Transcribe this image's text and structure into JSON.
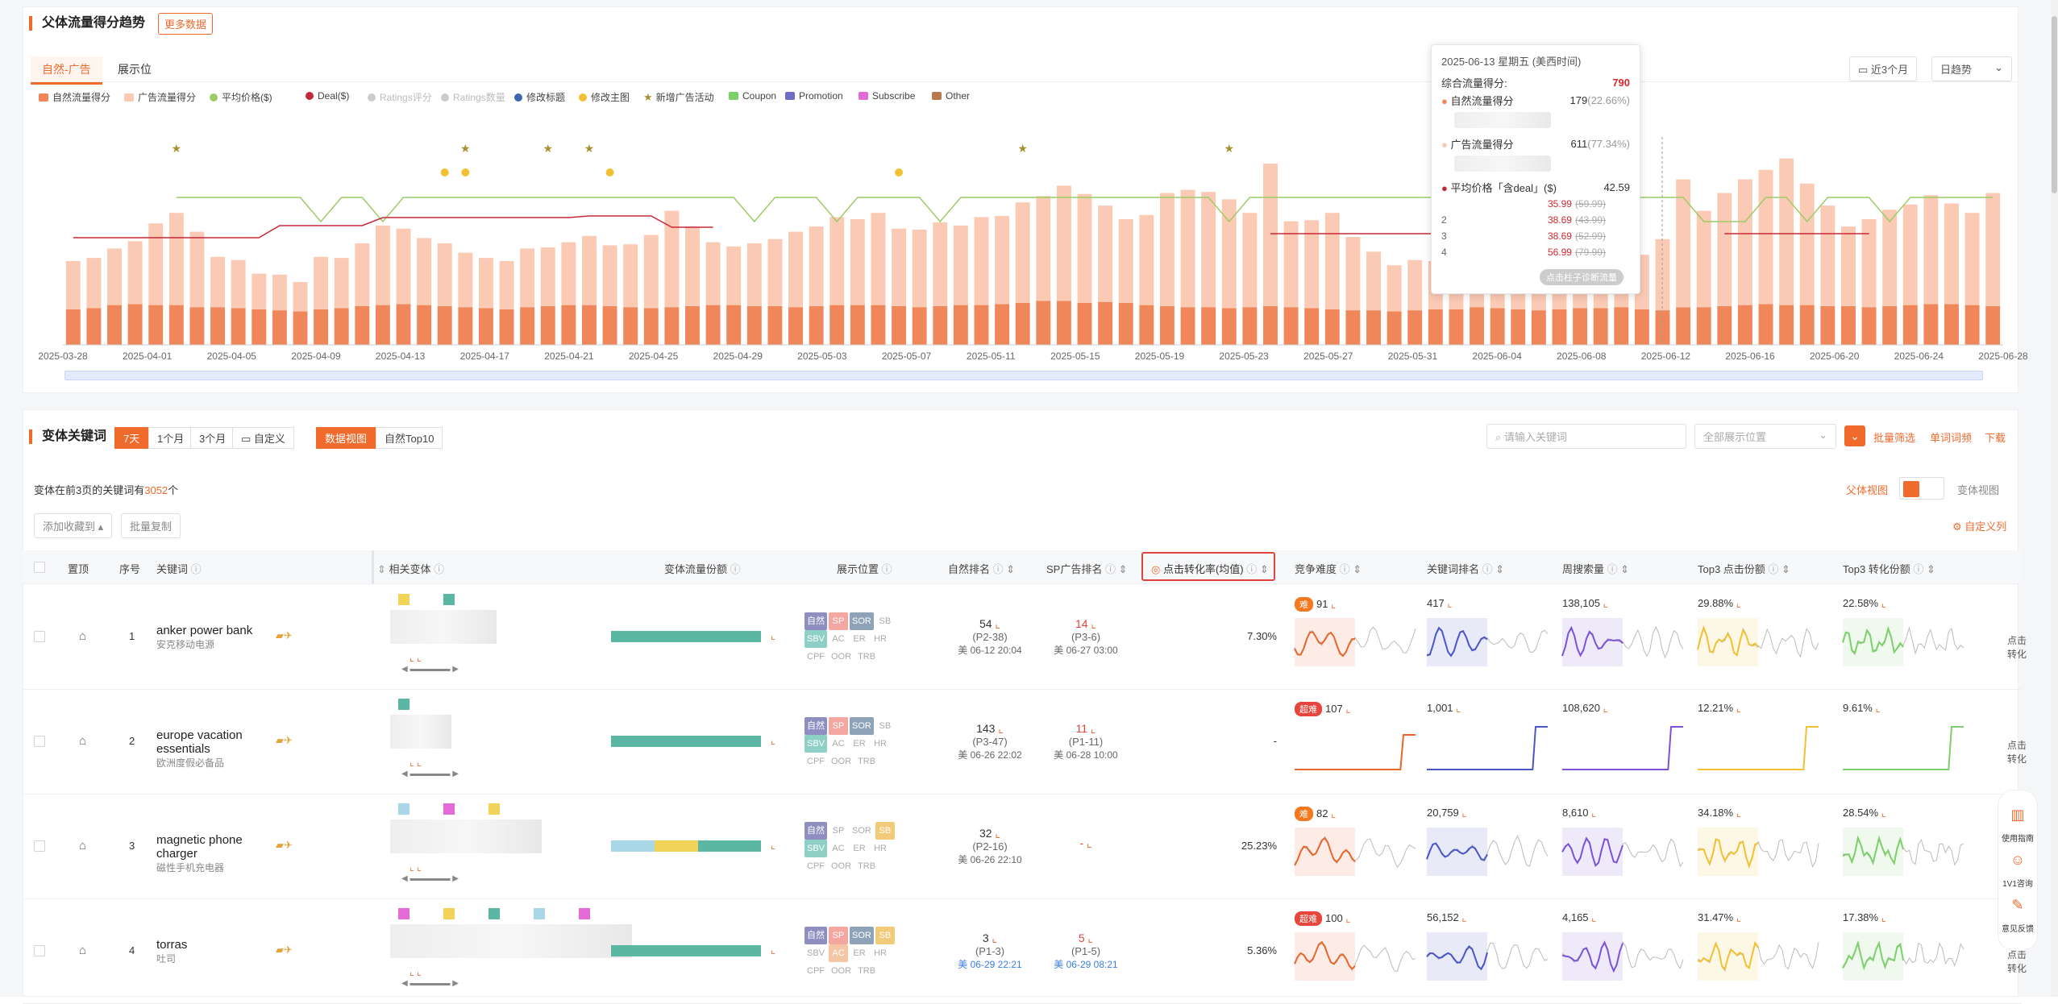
{
  "trend": {
    "title": "父体流量得分趋势",
    "more_button": "更多数据",
    "tabs": [
      "自然-广告",
      "展示位"
    ],
    "active_tab": 0,
    "range_select": "近3个月",
    "granularity_select": "日趋势",
    "legend": [
      {
        "label": "自然流量得分",
        "color": "#f0875a",
        "shape": "sw",
        "enabled": true
      },
      {
        "label": "广告流量得分",
        "color": "#fbcab4",
        "shape": "sw",
        "enabled": true
      },
      {
        "label": "平均价格($)",
        "color": "#9ccc65",
        "shape": "dot",
        "enabled": true
      },
      {
        "label": "Deal($)",
        "color": "#c62839",
        "shape": "dot",
        "enabled": true
      },
      {
        "label": "Ratings评分",
        "color": "#cccccc",
        "shape": "dot",
        "enabled": false
      },
      {
        "label": "Ratings数量",
        "color": "#cccccc",
        "shape": "dot",
        "enabled": false
      },
      {
        "label": "修改标题",
        "color": "#3f67b1",
        "shape": "dot",
        "enabled": true
      },
      {
        "label": "修改主图",
        "color": "#f2c033",
        "shape": "dot",
        "enabled": true
      },
      {
        "label": "新增广告活动",
        "color": "#a89030",
        "shape": "star",
        "enabled": true
      },
      {
        "label": "Coupon",
        "color": "#7cd06a",
        "shape": "sw",
        "enabled": true
      },
      {
        "label": "Promotion",
        "color": "#6c6ec8",
        "shape": "sw",
        "enabled": true
      },
      {
        "label": "Subscribe",
        "color": "#e36ad8",
        "shape": "sw",
        "enabled": true
      },
      {
        "label": "Other",
        "color": "#b77a4e",
        "shape": "sw",
        "enabled": true
      }
    ],
    "tooltip": {
      "header": "2025-06-13 星期五 (美西时间)",
      "total_label": "综合流量得分:",
      "total_value": "790",
      "natural_label": "自然流量得分",
      "natural_value": "179",
      "natural_pct": "(22.66%)",
      "ad_label": "广告流量得分",
      "ad_value": "611",
      "ad_pct": "(77.34%)",
      "price_label": "平均价格「含deal」($)",
      "price_value": "42.59",
      "prices": [
        {
          "idx": "",
          "deal": "35.99",
          "orig": "(59.99)"
        },
        {
          "idx": "2",
          "deal": "38.69",
          "orig": "(43.99)"
        },
        {
          "idx": "3",
          "deal": "38.69",
          "orig": "(52.99)"
        },
        {
          "idx": "4",
          "deal": "56.99",
          "orig": "(79.99)"
        }
      ],
      "hint": "点击柱子诊断流量"
    }
  },
  "chart_data": {
    "type": "bar",
    "stacked": true,
    "x_tick_labels": [
      "2025-03-28",
      "2025-04-01",
      "2025-04-05",
      "2025-04-09",
      "2025-04-13",
      "2025-04-17",
      "2025-04-21",
      "2025-04-25",
      "2025-04-29",
      "2025-05-03",
      "2025-05-07",
      "2025-05-11",
      "2025-05-15",
      "2025-05-19",
      "2025-05-23",
      "2025-05-27",
      "2025-05-31",
      "2025-06-04",
      "2025-06-08",
      "2025-06-12",
      "2025-06-16",
      "2025-06-20",
      "2025-06-24",
      "2025-06-28"
    ],
    "series": [
      {
        "name": "自然流量得分",
        "values": [
          170,
          175,
          190,
          195,
          190,
          190,
          180,
          180,
          175,
          170,
          165,
          160,
          170,
          175,
          185,
          190,
          195,
          190,
          185,
          180,
          175,
          170,
          180,
          185,
          190,
          190,
          185,
          180,
          175,
          180,
          185,
          190,
          190,
          185,
          185,
          180,
          185,
          190,
          190,
          190,
          185,
          180,
          185,
          190,
          190,
          195,
          200,
          210,
          210,
          200,
          205,
          200,
          190,
          185,
          180,
          180,
          175,
          180,
          185,
          180,
          175,
          170,
          165,
          165,
          160,
          165,
          170,
          170,
          180,
          175,
          170,
          165,
          170,
          175,
          175,
          180,
          170,
          165,
          179,
          180,
          185,
          190,
          195,
          190,
          190,
          185,
          185,
          180,
          185,
          190,
          195,
          195,
          190,
          185
        ]
      },
      {
        "name": "广告流量得分",
        "values": [
          230,
          240,
          270,
          300,
          390,
          440,
          360,
          240,
          230,
          170,
          170,
          140,
          250,
          240,
          300,
          380,
          360,
          320,
          300,
          260,
          240,
          230,
          280,
          280,
          300,
          330,
          290,
          300,
          350,
          460,
          380,
          300,
          280,
          300,
          320,
          360,
          380,
          420,
          410,
          440,
          370,
          370,
          400,
          380,
          420,
          420,
          480,
          500,
          550,
          520,
          460,
          400,
          430,
          540,
          560,
          550,
          520,
          450,
          680,
          410,
          420,
          460,
          350,
          280,
          220,
          240,
          230,
          270,
          220,
          260,
          270,
          540,
          500,
          400,
          200,
          230,
          260,
          340,
          611,
          460,
          540,
          600,
          640,
          700,
          580,
          480,
          380,
          420,
          460,
          480,
          520,
          480,
          440,
          540
        ]
      }
    ],
    "overlay_lines": [
      {
        "name": "平均价格($)",
        "color": "#9ccc65"
      },
      {
        "name": "Deal($)",
        "color": "#c62839"
      }
    ],
    "events": [
      "修改主图",
      "新增广告活动"
    ]
  },
  "variants": {
    "title": "变体关键词",
    "ranges": [
      "7天",
      "1个月",
      "3个月",
      "自定义"
    ],
    "active_range": 0,
    "views": [
      "数据视图",
      "自然Top10"
    ],
    "active_view": 0,
    "search_placeholder": "请输入关键词",
    "position_select": "全部展示位置",
    "batch_filter": "批量筛选",
    "word_freq": "单词词频",
    "download": "下载",
    "summary_pre": "变体在前3页的关键词有",
    "summary_count": "3052",
    "summary_post": "个",
    "parent_view": "父体视图",
    "variant_view": "变体视图",
    "add_fav": "添加收藏到",
    "batch_copy": "批量复制",
    "custom_cols": "自定义列",
    "columns": [
      "置顶",
      "序号",
      "关键词",
      "相关变体",
      "变体流量份额",
      "展示位置",
      "自然排名",
      "SP广告排名",
      "点击转化率(均值)",
      "竞争难度",
      "关键词排名",
      "周搜索量",
      "Top3 点击份额",
      "Top3 转化份额"
    ],
    "rows": [
      {
        "idx": "1",
        "kw": "anker power bank",
        "kw_cn": "安克移动电源",
        "nat_rank": "54",
        "nat_page": "(P2-38)",
        "nat_date": "美 06-12 20:04",
        "sp_rank": "14",
        "sp_page": "(P3-6)",
        "sp_date": "美 06-27 03:00",
        "cvr": "7.30%",
        "diff_label": "难",
        "diff_color": "#f5781e",
        "diff_val": "91",
        "kw_rank": "417",
        "weekly": "138,105",
        "top3_click": "29.88%",
        "top3_conv": "22.58%"
      },
      {
        "idx": "2",
        "kw": "europe vacation essentials",
        "kw_cn": "欧洲度假必备品",
        "nat_rank": "143",
        "nat_page": "(P3-47)",
        "nat_date": "美 06-26 22:02",
        "sp_rank": "11",
        "sp_page": "(P1-11)",
        "sp_date": "美 06-28 10:00",
        "cvr": "-",
        "diff_label": "超难",
        "diff_color": "#e8453c",
        "diff_val": "107",
        "kw_rank": "1,001",
        "weekly": "108,620",
        "top3_click": "12.21%",
        "top3_conv": "9.61%"
      },
      {
        "idx": "3",
        "kw": "magnetic phone charger",
        "kw_cn": "磁性手机充电器",
        "nat_rank": "32",
        "nat_page": "(P2-16)",
        "nat_date": "美 06-26 22:10",
        "sp_rank": "-",
        "sp_page": "",
        "sp_date": "",
        "cvr": "25.23%",
        "diff_label": "难",
        "diff_color": "#f5781e",
        "diff_val": "82",
        "kw_rank": "20,759",
        "weekly": "8,610",
        "top3_click": "34.18%",
        "top3_conv": "28.54%"
      },
      {
        "idx": "4",
        "kw": "torras",
        "kw_cn": "吐司",
        "nat_rank": "3",
        "nat_page": "(P1-3)",
        "nat_date": "美 06-29 22:21",
        "sp_rank": "5",
        "sp_page": "(P1-5)",
        "sp_date": "美 06-29 08:21",
        "cvr": "5.36%",
        "diff_label": "超难",
        "diff_color": "#e8453c",
        "diff_val": "100",
        "kw_rank": "56,152",
        "weekly": "4,165",
        "top3_click": "31.47%",
        "top3_conv": "17.38%"
      }
    ],
    "tag_labels": [
      "自然",
      "SP",
      "SOR",
      "SB",
      "SBV",
      "AC",
      "ER",
      "HR",
      "CPF",
      "OOR",
      "TRB"
    ],
    "right_clip": "点击转化"
  },
  "side_tools": [
    "使用指南",
    "1V1咨询",
    "意见反馈"
  ]
}
